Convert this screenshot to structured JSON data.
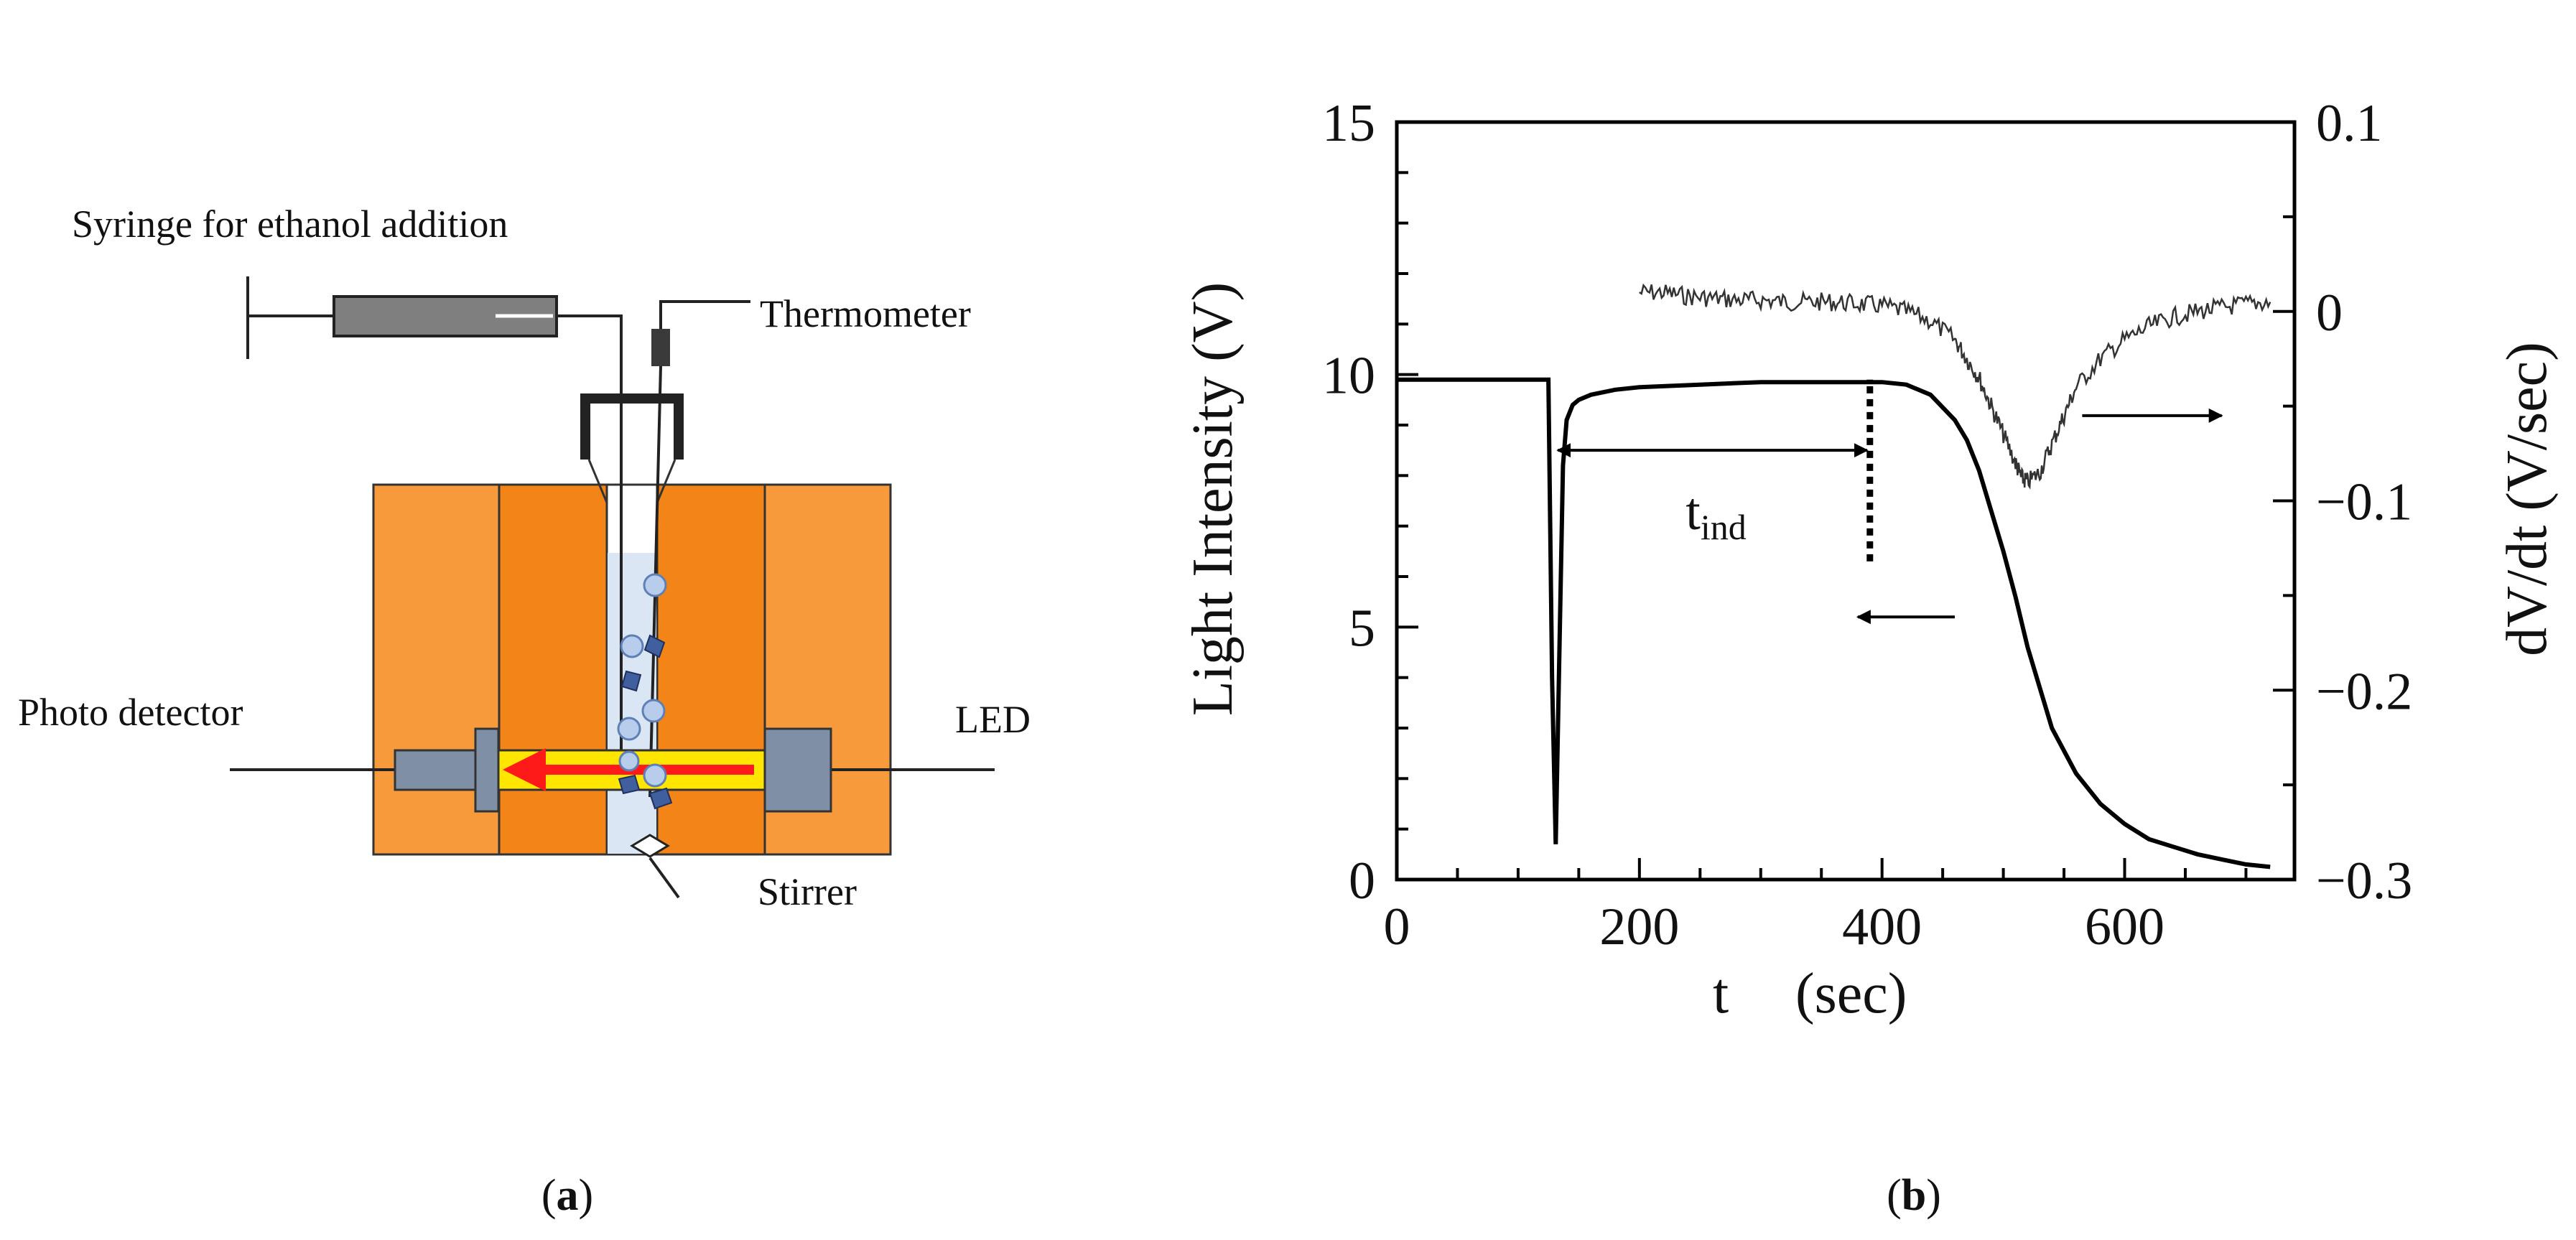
{
  "panels": {
    "a": {
      "label_open": "(",
      "label_letter": "a",
      "label_close": ")",
      "labels": {
        "syringe": "Syringe for ethanol addition",
        "thermometer": "Thermometer",
        "photo_detector": "Photo detector",
        "led": "LED",
        "stirrer": "Stirrer"
      },
      "colors": {
        "block_outer": "#f79a3c",
        "block_inner": "#f28418",
        "beam": "#ffe600",
        "arrow": "#ff1a1a",
        "component": "#7f8fa6",
        "cuvette": "#dbe6f5",
        "bubble": "#b8cdeb",
        "crystal": "#3f5f9e"
      }
    },
    "b": {
      "label_open": "(",
      "label_letter": "b",
      "label_close": ")"
    }
  },
  "chart_data": {
    "type": "line",
    "xlabel": "t (sec)",
    "xlabel_t": "t",
    "xlabel_unit": "(sec)",
    "ylabel": "Light Intensity (V)",
    "y2label": "dV/dt (V/sec)",
    "xlim": [
      0,
      740
    ],
    "ylim": [
      0,
      15
    ],
    "y2lim": [
      -0.3,
      0.1
    ],
    "xticks": [
      0,
      200,
      400,
      600
    ],
    "xtick_labels": [
      "0",
      "200",
      "400",
      "600"
    ],
    "yticks": [
      0,
      5,
      10,
      15
    ],
    "ytick_labels": [
      "0",
      "5",
      "10",
      "15"
    ],
    "y2ticks": [
      0.1,
      0,
      -0.1,
      -0.2,
      -0.3
    ],
    "y2tick_labels": [
      "0.1",
      "0",
      "−0.1",
      "−0.2",
      "−0.3"
    ],
    "series": [
      {
        "name": "Light Intensity",
        "axis": "left",
        "x": [
          0,
          100,
          120,
          125,
          128,
          131,
          134,
          137,
          140,
          145,
          150,
          160,
          180,
          200,
          250,
          300,
          350,
          400,
          420,
          440,
          460,
          470,
          480,
          490,
          500,
          510,
          520,
          530,
          540,
          560,
          580,
          600,
          620,
          640,
          660,
          680,
          700,
          720
        ],
        "y": [
          9.9,
          9.9,
          9.9,
          9.9,
          4.0,
          0.7,
          4.5,
          8.2,
          9.1,
          9.4,
          9.5,
          9.6,
          9.7,
          9.75,
          9.8,
          9.85,
          9.85,
          9.85,
          9.8,
          9.6,
          9.1,
          8.7,
          8.1,
          7.3,
          6.5,
          5.6,
          4.6,
          3.8,
          3.0,
          2.1,
          1.5,
          1.1,
          0.8,
          0.65,
          0.5,
          0.4,
          0.3,
          0.25
        ]
      },
      {
        "name": "dV/dt",
        "axis": "right",
        "x": [
          200,
          220,
          240,
          260,
          280,
          300,
          320,
          340,
          360,
          380,
          400,
          420,
          440,
          460,
          470,
          480,
          490,
          500,
          510,
          515,
          520,
          530,
          540,
          550,
          560,
          580,
          600,
          620,
          640,
          660,
          680,
          700,
          720
        ],
        "y": [
          0.01,
          0.01,
          0.008,
          0.007,
          0.006,
          0.006,
          0.005,
          0.005,
          0.005,
          0.004,
          0.003,
          0.0,
          -0.005,
          -0.015,
          -0.025,
          -0.035,
          -0.05,
          -0.065,
          -0.08,
          -0.088,
          -0.09,
          -0.085,
          -0.07,
          -0.055,
          -0.04,
          -0.025,
          -0.015,
          -0.008,
          -0.003,
          0.0,
          0.002,
          0.004,
          0.005
        ]
      }
    ],
    "annotations": {
      "t_ind_main": "t",
      "t_ind_sub": "ind",
      "t_ind_x_start": 128,
      "t_ind_x_end": 390,
      "t_ind_y": 8.5,
      "dashed_line_x": 390,
      "dashed_line_y_range": [
        6.3,
        9.9
      ],
      "arrow_left_y": 5.2,
      "arrow_left_x_range": [
        460,
        380
      ],
      "arrow_right_y2": -0.055,
      "arrow_right_x_range": [
        565,
        680
      ]
    }
  }
}
